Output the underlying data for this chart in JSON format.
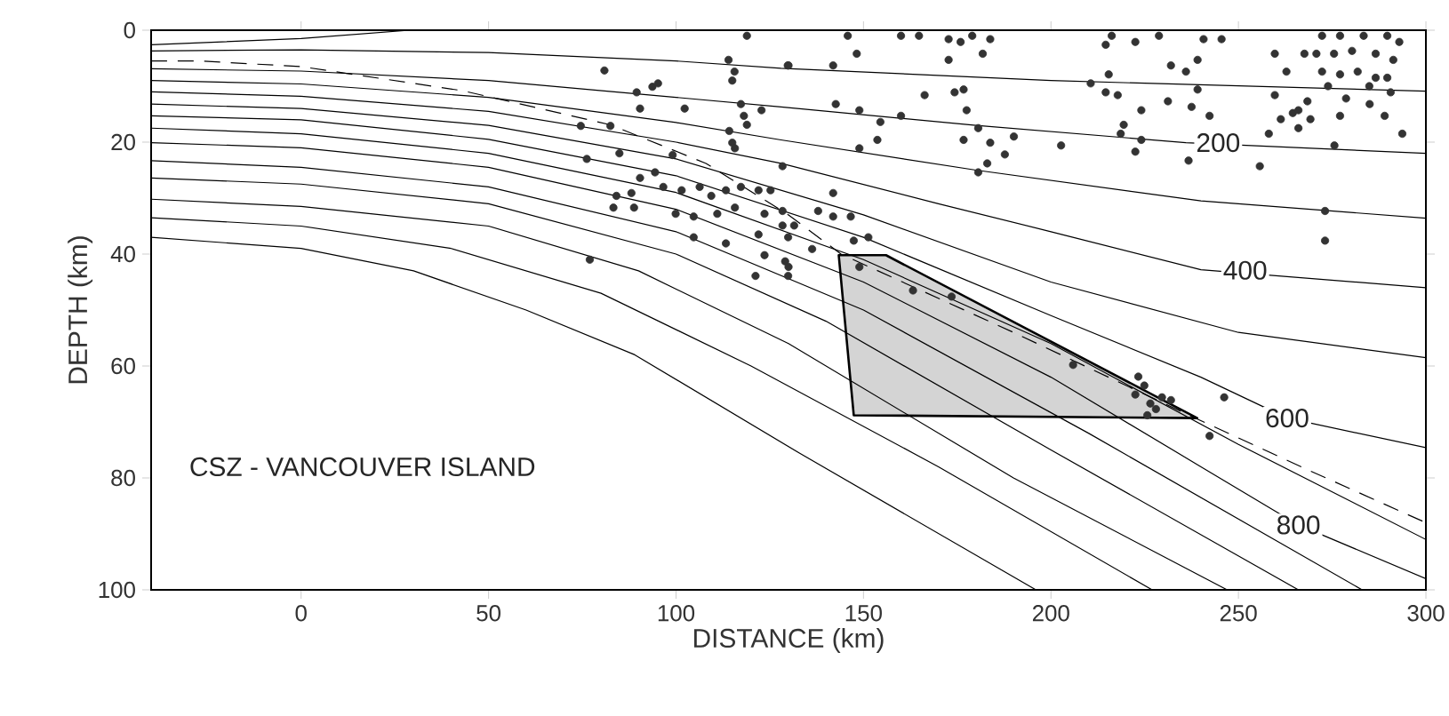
{
  "chart_data": {
    "type": "line",
    "xlabel": "DISTANCE (km)",
    "ylabel": "DEPTH (km)",
    "xlim": [
      -40,
      300
    ],
    "ylim": [
      100,
      0
    ],
    "xticks": [
      0,
      50,
      100,
      150,
      200,
      250,
      300
    ],
    "yticks": [
      0,
      20,
      40,
      60,
      80,
      100
    ],
    "grid": false,
    "annotations": [
      "CSZ - VANCOUVER ISLAND",
      {
        "text": "200",
        "x": 244.6,
        "y": 20.1
      },
      {
        "text": "400",
        "x": 251.8,
        "y": 42.9
      },
      {
        "text": "600",
        "x": 263,
        "y": 69.3
      },
      {
        "text": "800",
        "x": 266,
        "y": 88.4
      }
    ],
    "series": [
      {
        "type": "area",
        "color": "#d4d4d4",
        "x": [
          143.4,
          156,
          239,
          147.4
        ],
        "values": [
          40.2,
          40.2,
          69.3,
          68.8
        ]
      },
      {
        "color": "#000000",
        "x": [
          -40,
          0,
          29
        ],
        "values": [
          2.6,
          1.5,
          0
        ]
      },
      {
        "color": "#000000",
        "x": [
          -40,
          0,
          50,
          100,
          128,
          200,
          300
        ],
        "values": [
          3.7,
          3.5,
          4,
          5.5,
          6.8,
          9,
          10.9
        ]
      },
      {
        "color": "#000000",
        "x": [
          -40,
          0,
          50,
          100,
          128,
          180,
          236,
          300
        ],
        "values": [
          6.9,
          7.3,
          9,
          12,
          13.7,
          17,
          20.1,
          22
        ]
      },
      {
        "color": "#000000",
        "x": [
          -40,
          0,
          50,
          100,
          128,
          180,
          240,
          300
        ],
        "values": [
          9,
          9.6,
          12,
          16.5,
          19.6,
          25,
          30.5,
          33.6
        ]
      },
      {
        "color": "#000000",
        "x": [
          -40,
          0,
          50,
          100,
          128,
          170,
          200,
          240,
          300
        ],
        "values": [
          11,
          11.8,
          14.5,
          20,
          23.8,
          31,
          36,
          42.8,
          46
        ]
      },
      {
        "color": "#000000",
        "x": [
          -40,
          0,
          50,
          100,
          150,
          200,
          250,
          300
        ],
        "values": [
          13.2,
          14,
          17,
          23,
          33,
          45,
          54,
          58.5
        ]
      },
      {
        "color": "#000000",
        "x": [
          -40,
          0,
          50,
          100,
          150,
          200,
          240,
          263,
          300
        ],
        "values": [
          15.3,
          16,
          19.5,
          26,
          37,
          51,
          62,
          69.3,
          74.6
        ]
      },
      {
        "color": "#000000",
        "x": [
          -40,
          0,
          50,
          100,
          150,
          200,
          250,
          300
        ],
        "values": [
          17.5,
          18.5,
          22,
          29,
          41,
          56,
          74,
          91
        ]
      },
      {
        "color": "#000000",
        "x": [
          -40,
          0,
          50,
          100,
          150,
          200,
          240,
          266,
          300
        ],
        "values": [
          20.1,
          21,
          24.5,
          32,
          45,
          62,
          78,
          88.4,
          98
        ]
      },
      {
        "color": "#000000",
        "x": [
          -40,
          0,
          50,
          100,
          150,
          210,
          283
        ],
        "values": [
          23.3,
          24.5,
          28,
          36,
          50,
          72,
          100
        ]
      },
      {
        "color": "#000000",
        "x": [
          -40,
          0,
          50,
          100,
          140,
          200,
          266
        ],
        "values": [
          26.4,
          27.5,
          31,
          40,
          52,
          75,
          100
        ]
      },
      {
        "color": "#000000",
        "x": [
          -40,
          0,
          50,
          90,
          130,
          190,
          247
        ],
        "values": [
          30.2,
          31.5,
          35,
          43,
          56,
          80,
          100
        ]
      },
      {
        "color": "#000000",
        "x": [
          -40,
          0,
          40,
          80,
          120,
          170,
          227
        ],
        "values": [
          33.5,
          35,
          39,
          47,
          60,
          78,
          100
        ]
      },
      {
        "color": "#000000",
        "x": [
          -40,
          0,
          30,
          60,
          89,
          133,
          196
        ],
        "values": [
          37,
          39,
          43,
          50,
          58,
          75.6,
          100
        ]
      },
      {
        "color": "#000000",
        "line_style": "dashed",
        "x": [
          -40,
          -27,
          0,
          43,
          82.5,
          108,
          130,
          144,
          190,
          237.5,
          270,
          300
        ],
        "values": [
          5.5,
          5.5,
          6.5,
          10.8,
          16.9,
          23.8,
          33,
          40,
          54,
          69,
          79,
          88
        ]
      },
      {
        "type": "scatter",
        "color": "#333333",
        "marker": "circle",
        "x": [
          118.9,
          80.9,
          114,
          115.6,
          115,
          129.8,
          89.5,
          93.7,
          95.2,
          90.4,
          102.3,
          117.3,
          118.1,
          118.9,
          114.2,
          115,
          115.7,
          122.8,
          74.6,
          82.5,
          76.2,
          84.9,
          99.1,
          128.4,
          90.4,
          94.4,
          96.6,
          101.5,
          106.3,
          109.4,
          113.3,
          117.3,
          122,
          125.2,
          99.9,
          104.7,
          111,
          115.7,
          123.6,
          128.4,
          122,
          129.9,
          84.1,
          83.3,
          88.1,
          88.8,
          104.7,
          113.3,
          123.6,
          129.1,
          121.2,
          129.9,
          77,
          145.8,
          148.2,
          160,
          164.8,
          172.7,
          175.9,
          179,
          183.8,
          172.7,
          181.8,
          130,
          141.9,
          142.6,
          148.9,
          154.5,
          160,
          153.7,
          148.9,
          166.3,
          174.3,
          176.7,
          177.5,
          180.6,
          176.7,
          183.8,
          187.7,
          190.1,
          183,
          180.6,
          202.7,
          214.6,
          215.4,
          210.6,
          214.6,
          217.8,
          219.4,
          218.6,
          222.5,
          224.1,
          224.1,
          216.2,
          222.5,
          228.8,
          236.7,
          232,
          236,
          239.1,
          242.3,
          231.2,
          237.5,
          239.1,
          240.7,
          245.5,
          255.7,
          259.7,
          262.8,
          264.5,
          261.3,
          258.1,
          266,
          267.6,
          269.2,
          259.7,
          275.6,
          273.1,
          273.1,
          272.3,
          277.1,
          283.4,
          289.7,
          292.9,
          270.8,
          275.5,
          280.3,
          286.6,
          291.3,
          272.3,
          277.1,
          281.8,
          286.6,
          289.7,
          273.9,
          284.9,
          290.6,
          278.7,
          285,
          289,
          293.7,
          277.1,
          268.4,
          266,
          205.9,
          223.3,
          224.9,
          222.5,
          226.5,
          228,
          225.7,
          229.6,
          232,
          246.2,
          242.3,
          148.9,
          163.2,
          173.5,
          147.4,
          151.3,
          141.9,
          128.4,
          137.9,
          131.5,
          141.9,
          146.6,
          136.3,
          130
        ],
        "values": [
          1.0,
          7.2,
          5.3,
          7.4,
          9,
          6.3,
          11.1,
          10.1,
          9.5,
          14,
          14,
          13.2,
          15.3,
          16.9,
          18,
          20.1,
          21.1,
          14.3,
          17.1,
          17.1,
          23,
          22,
          22.3,
          24.3,
          26.4,
          25.4,
          28,
          28.6,
          28,
          29.6,
          28.6,
          28,
          28.6,
          28.6,
          32.8,
          33.3,
          32.8,
          31.7,
          32.8,
          34.9,
          36.5,
          37,
          29.6,
          31.7,
          29.1,
          31.7,
          37,
          38.1,
          40.2,
          41.3,
          43.9,
          43.9,
          41,
          1.0,
          4.2,
          1.0,
          1.0,
          1.6,
          2.1,
          1.0,
          1.6,
          5.3,
          4.2,
          6.3,
          6.3,
          13.2,
          14.3,
          16.4,
          15.3,
          19.6,
          21.1,
          11.6,
          11.1,
          10.6,
          14.3,
          17.5,
          19.6,
          20.1,
          22.2,
          19,
          23.8,
          25.4,
          20.6,
          2.6,
          7.9,
          9.5,
          11.1,
          11.6,
          16.9,
          18.5,
          21.7,
          14.3,
          19.6,
          1.0,
          2.1,
          1.0,
          23.3,
          6.3,
          7.4,
          10.6,
          15.3,
          12.7,
          13.7,
          5.3,
          1.6,
          1.6,
          24.3,
          11.6,
          7.4,
          14.8,
          15.9,
          18.5,
          17.5,
          4.2,
          15.9,
          4.2,
          20.6,
          32.3,
          37.6,
          1.0,
          1.0,
          1.0,
          1.0,
          2.1,
          4.2,
          4.2,
          3.7,
          4.2,
          5.3,
          7.4,
          7.9,
          7.4,
          8.5,
          8.5,
          10,
          10,
          11.1,
          12.2,
          13.2,
          15.3,
          18.5,
          15.3,
          12.7,
          14.3,
          59.8,
          61.9,
          63.5,
          65.1,
          66.7,
          67.7,
          68.8,
          65.6,
          66.1,
          65.6,
          72.5,
          42.3,
          46.5,
          47.6,
          37.6,
          37,
          29.1,
          32.3,
          32.3,
          34.9,
          33.3,
          33.3,
          39.1,
          42.3
        ]
      }
    ]
  }
}
